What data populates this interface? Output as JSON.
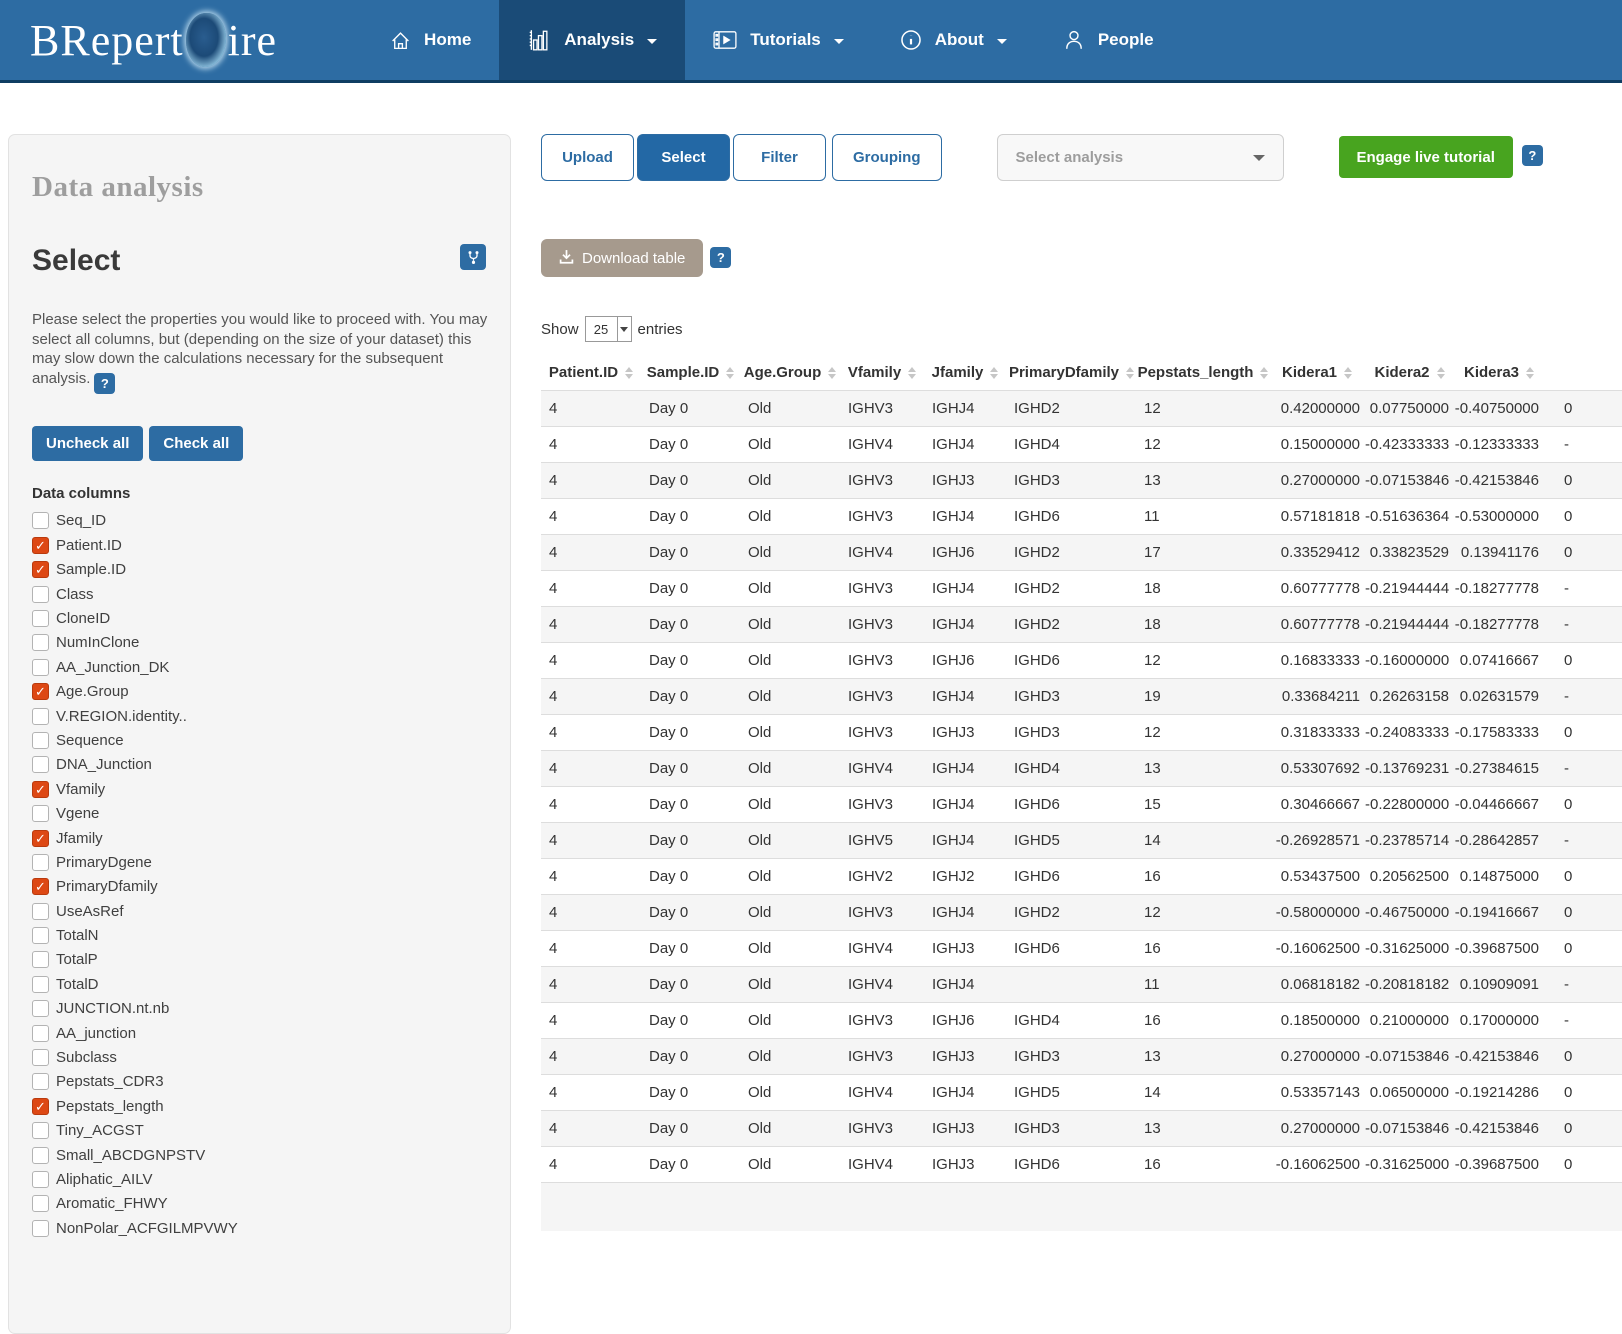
{
  "nav": {
    "brand": {
      "pre": "BRepert",
      "post": "ire"
    },
    "items": [
      {
        "label": "Home",
        "active": false,
        "caret": false
      },
      {
        "label": "Analysis",
        "active": true,
        "caret": true
      },
      {
        "label": "Tutorials",
        "active": false,
        "caret": true
      },
      {
        "label": "About",
        "active": false,
        "caret": true
      },
      {
        "label": "People",
        "active": false,
        "caret": false
      }
    ]
  },
  "sidebar": {
    "panel_title": "Data analysis",
    "section_title": "Select",
    "description": "Please select the properties you would like to proceed with. You may select all columns, but (depending on the size of your dataset) this may slow down the calculations necessary for the subsequent analysis.",
    "help_badge": "?",
    "uncheck_all_label": "Uncheck all",
    "check_all_label": "Check all",
    "columns_label": "Data columns",
    "checkboxes": [
      {
        "label": "Seq_ID",
        "checked": false
      },
      {
        "label": "Patient.ID",
        "checked": true
      },
      {
        "label": "Sample.ID",
        "checked": true
      },
      {
        "label": "Class",
        "checked": false
      },
      {
        "label": "CloneID",
        "checked": false
      },
      {
        "label": "NumInClone",
        "checked": false
      },
      {
        "label": "AA_Junction_DK",
        "checked": false
      },
      {
        "label": "Age.Group",
        "checked": true
      },
      {
        "label": "V.REGION.identity..",
        "checked": false
      },
      {
        "label": "Sequence",
        "checked": false
      },
      {
        "label": "DNA_Junction",
        "checked": false
      },
      {
        "label": "Vfamily",
        "checked": true
      },
      {
        "label": "Vgene",
        "checked": false
      },
      {
        "label": "Jfamily",
        "checked": true
      },
      {
        "label": "PrimaryDgene",
        "checked": false
      },
      {
        "label": "PrimaryDfamily",
        "checked": true
      },
      {
        "label": "UseAsRef",
        "checked": false
      },
      {
        "label": "TotalN",
        "checked": false
      },
      {
        "label": "TotalP",
        "checked": false
      },
      {
        "label": "TotalD",
        "checked": false
      },
      {
        "label": "JUNCTION.nt.nb",
        "checked": false
      },
      {
        "label": "AA_junction",
        "checked": false
      },
      {
        "label": "Subclass",
        "checked": false
      },
      {
        "label": "Pepstats_CDR3",
        "checked": false
      },
      {
        "label": "Pepstats_length",
        "checked": true
      },
      {
        "label": "Tiny_ACGST",
        "checked": false
      },
      {
        "label": "Small_ABCDGNPSTV",
        "checked": false
      },
      {
        "label": "Aliphatic_AILV",
        "checked": false
      },
      {
        "label": "Aromatic_FHWY",
        "checked": false
      },
      {
        "label": "NonPolar_ACFGILMPVWY",
        "checked": false
      }
    ]
  },
  "toolbar": {
    "tabs": [
      {
        "label": "Upload",
        "active": false
      },
      {
        "label": "Select",
        "active": true
      },
      {
        "label": "Filter",
        "active": false
      },
      {
        "label": "Grouping",
        "active": false
      }
    ],
    "analysis_select_placeholder": "Select analysis",
    "tutorial_button_label": "Engage live tutorial",
    "help_badge": "?"
  },
  "table_section": {
    "download_button_label": "Download table",
    "help_badge": "?",
    "show_label": "Show",
    "page_size": "25",
    "entries_label": "entries"
  },
  "table": {
    "columns": [
      "Patient.ID",
      "Sample.ID",
      "Age.Group",
      "Vfamily",
      "Jfamily",
      "PrimaryDfamily",
      "Pepstats_length",
      "Kidera1",
      "Kidera2",
      "Kidera3",
      ""
    ],
    "rows": [
      [
        "4",
        "Day 0",
        "Old",
        "IGHV3",
        "IGHJ4",
        "IGHD2",
        "12",
        "0.42000000",
        "0.07750000",
        "-0.40750000",
        "0"
      ],
      [
        "4",
        "Day 0",
        "Old",
        "IGHV4",
        "IGHJ4",
        "IGHD4",
        "12",
        "0.15000000",
        "-0.42333333",
        "-0.12333333",
        "-"
      ],
      [
        "4",
        "Day 0",
        "Old",
        "IGHV3",
        "IGHJ3",
        "IGHD3",
        "13",
        "0.27000000",
        "-0.07153846",
        "-0.42153846",
        "0"
      ],
      [
        "4",
        "Day 0",
        "Old",
        "IGHV3",
        "IGHJ4",
        "IGHD6",
        "11",
        "0.57181818",
        "-0.51636364",
        "-0.53000000",
        "0"
      ],
      [
        "4",
        "Day 0",
        "Old",
        "IGHV4",
        "IGHJ6",
        "IGHD2",
        "17",
        "0.33529412",
        "0.33823529",
        "0.13941176",
        "0"
      ],
      [
        "4",
        "Day 0",
        "Old",
        "IGHV3",
        "IGHJ4",
        "IGHD2",
        "18",
        "0.60777778",
        "-0.21944444",
        "-0.18277778",
        "-"
      ],
      [
        "4",
        "Day 0",
        "Old",
        "IGHV3",
        "IGHJ4",
        "IGHD2",
        "18",
        "0.60777778",
        "-0.21944444",
        "-0.18277778",
        "-"
      ],
      [
        "4",
        "Day 0",
        "Old",
        "IGHV3",
        "IGHJ6",
        "IGHD6",
        "12",
        "0.16833333",
        "-0.16000000",
        "0.07416667",
        "0"
      ],
      [
        "4",
        "Day 0",
        "Old",
        "IGHV3",
        "IGHJ4",
        "IGHD3",
        "19",
        "0.33684211",
        "0.26263158",
        "0.02631579",
        "-"
      ],
      [
        "4",
        "Day 0",
        "Old",
        "IGHV3",
        "IGHJ3",
        "IGHD3",
        "12",
        "0.31833333",
        "-0.24083333",
        "-0.17583333",
        "0"
      ],
      [
        "4",
        "Day 0",
        "Old",
        "IGHV4",
        "IGHJ4",
        "IGHD4",
        "13",
        "0.53307692",
        "-0.13769231",
        "-0.27384615",
        "-"
      ],
      [
        "4",
        "Day 0",
        "Old",
        "IGHV3",
        "IGHJ4",
        "IGHD6",
        "15",
        "0.30466667",
        "-0.22800000",
        "-0.04466667",
        "0"
      ],
      [
        "4",
        "Day 0",
        "Old",
        "IGHV5",
        "IGHJ4",
        "IGHD5",
        "14",
        "-0.26928571",
        "-0.23785714",
        "-0.28642857",
        "-"
      ],
      [
        "4",
        "Day 0",
        "Old",
        "IGHV2",
        "IGHJ2",
        "IGHD6",
        "16",
        "0.53437500",
        "0.20562500",
        "0.14875000",
        "0"
      ],
      [
        "4",
        "Day 0",
        "Old",
        "IGHV3",
        "IGHJ4",
        "IGHD2",
        "12",
        "-0.58000000",
        "-0.46750000",
        "-0.19416667",
        "0"
      ],
      [
        "4",
        "Day 0",
        "Old",
        "IGHV4",
        "IGHJ3",
        "IGHD6",
        "16",
        "-0.16062500",
        "-0.31625000",
        "-0.39687500",
        "0"
      ],
      [
        "4",
        "Day 0",
        "Old",
        "IGHV4",
        "IGHJ4",
        "",
        "11",
        "0.06818182",
        "-0.20818182",
        "0.10909091",
        "-"
      ],
      [
        "4",
        "Day 0",
        "Old",
        "IGHV3",
        "IGHJ6",
        "IGHD4",
        "16",
        "0.18500000",
        "0.21000000",
        "0.17000000",
        "-"
      ],
      [
        "4",
        "Day 0",
        "Old",
        "IGHV3",
        "IGHJ3",
        "IGHD3",
        "13",
        "0.27000000",
        "-0.07153846",
        "-0.42153846",
        "0"
      ],
      [
        "4",
        "Day 0",
        "Old",
        "IGHV4",
        "IGHJ4",
        "IGHD5",
        "14",
        "0.53357143",
        "0.06500000",
        "-0.19214286",
        "0"
      ],
      [
        "4",
        "Day 0",
        "Old",
        "IGHV3",
        "IGHJ3",
        "IGHD3",
        "13",
        "0.27000000",
        "-0.07153846",
        "-0.42153846",
        "0"
      ],
      [
        "4",
        "Day 0",
        "Old",
        "IGHV4",
        "IGHJ3",
        "IGHD6",
        "16",
        "-0.16062500",
        "-0.31625000",
        "-0.39687500",
        "0"
      ]
    ],
    "partial_row": [
      "",
      "",
      "",
      "",
      "",
      "",
      "",
      "",
      "",
      "",
      ""
    ]
  },
  "colors": {
    "navbar": "#2d6ca3",
    "navbar_active": "#1a4b77",
    "primary": "#2d6ca3",
    "green_button": "#48a41f",
    "download_button": "#a69a8d",
    "checkbox_checked": "#dd4814",
    "row_stripe": "#f5f5f5"
  }
}
